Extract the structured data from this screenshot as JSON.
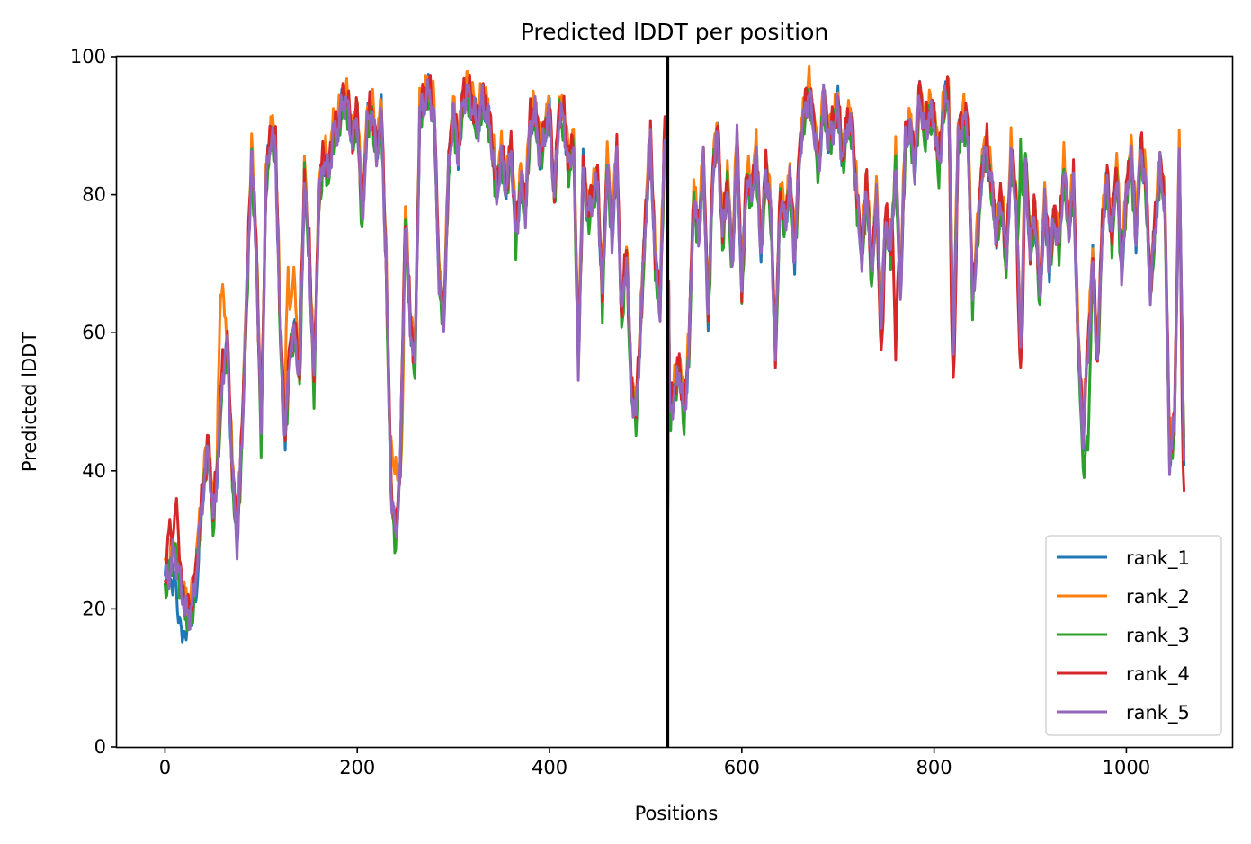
{
  "chart_data": {
    "type": "line",
    "title": "Predicted lDDT per position",
    "xlabel": "Positions",
    "ylabel": "Predicted lDDT",
    "xlim": [
      -50,
      1110
    ],
    "ylim": [
      0,
      100
    ],
    "xticks": [
      0,
      200,
      400,
      600,
      800,
      1000
    ],
    "yticks": [
      0,
      20,
      40,
      60,
      80,
      100
    ],
    "grid": false,
    "legend_position": "lower right",
    "vline": {
      "x": 523,
      "color": "#000000"
    },
    "series": [
      {
        "name": "rank_1",
        "color": "#1f77b4",
        "offset": 0.0,
        "overrides": [
          [
            3,
            27
          ],
          [
            8,
            22
          ],
          [
            14,
            18
          ],
          [
            18,
            15.2
          ],
          [
            22,
            15.5
          ],
          [
            28,
            17.5
          ],
          [
            32,
            21
          ]
        ]
      },
      {
        "name": "rank_2",
        "color": "#ff7f0e",
        "offset": 1.2,
        "overrides": [
          [
            58,
            64
          ],
          [
            60,
            67
          ],
          [
            128,
            69.5
          ],
          [
            134,
            69.5
          ],
          [
            235,
            45
          ],
          [
            240,
            42
          ],
          [
            245,
            40
          ]
        ]
      },
      {
        "name": "rank_3",
        "color": "#2ca02c",
        "offset": -0.9,
        "overrides": [
          [
            956,
            39
          ],
          [
            960,
            43
          ],
          [
            890,
            88
          ],
          [
            895,
            86
          ]
        ]
      },
      {
        "name": "rank_4",
        "color": "#d62728",
        "offset": 0.6,
        "overrides": [
          [
            5,
            33
          ],
          [
            12,
            36
          ],
          [
            745,
            57.5
          ],
          [
            760,
            56
          ],
          [
            820,
            53.5
          ],
          [
            890,
            55
          ],
          [
            1060,
            37
          ]
        ]
      },
      {
        "name": "rank_5",
        "color": "#9467bd",
        "offset": -0.4,
        "overrides": []
      }
    ],
    "x": [
      0,
      5,
      10,
      15,
      20,
      25,
      30,
      35,
      40,
      45,
      50,
      55,
      60,
      65,
      70,
      75,
      80,
      85,
      90,
      95,
      100,
      105,
      110,
      115,
      120,
      125,
      130,
      135,
      140,
      145,
      150,
      155,
      160,
      165,
      170,
      175,
      180,
      185,
      190,
      195,
      200,
      205,
      210,
      215,
      220,
      225,
      230,
      235,
      240,
      245,
      250,
      255,
      260,
      265,
      270,
      275,
      280,
      285,
      290,
      295,
      300,
      305,
      310,
      315,
      320,
      325,
      330,
      335,
      340,
      345,
      350,
      355,
      360,
      365,
      370,
      375,
      380,
      385,
      390,
      395,
      400,
      405,
      410,
      415,
      420,
      425,
      430,
      435,
      440,
      445,
      450,
      455,
      460,
      465,
      470,
      475,
      480,
      485,
      490,
      495,
      500,
      505,
      510,
      515,
      520,
      523,
      525,
      530,
      535,
      540,
      545,
      550,
      555,
      560,
      565,
      570,
      575,
      580,
      585,
      590,
      595,
      600,
      605,
      610,
      615,
      620,
      625,
      630,
      635,
      640,
      645,
      650,
      655,
      660,
      665,
      670,
      675,
      680,
      685,
      690,
      695,
      700,
      705,
      710,
      715,
      720,
      725,
      730,
      735,
      740,
      745,
      750,
      755,
      760,
      765,
      770,
      775,
      780,
      785,
      790,
      795,
      800,
      805,
      810,
      815,
      820,
      825,
      830,
      835,
      840,
      845,
      850,
      855,
      860,
      865,
      870,
      875,
      880,
      885,
      890,
      895,
      900,
      905,
      910,
      915,
      920,
      925,
      930,
      935,
      940,
      945,
      950,
      955,
      960,
      965,
      970,
      975,
      980,
      985,
      990,
      995,
      1000,
      1005,
      1010,
      1015,
      1020,
      1025,
      1030,
      1035,
      1040,
      1045,
      1050,
      1055,
      1060
    ],
    "base": [
      24,
      26,
      29,
      25,
      21,
      19,
      22,
      30,
      38,
      44,
      33,
      42,
      55,
      58,
      40,
      30,
      45,
      65,
      86,
      72,
      45,
      82,
      89,
      87,
      60,
      45,
      58,
      60,
      54,
      83,
      72,
      52,
      79,
      86,
      83,
      89,
      90,
      94,
      93,
      88,
      92,
      76,
      90,
      93,
      86,
      92,
      70,
      38,
      30,
      42,
      77,
      62,
      55,
      92,
      94,
      95,
      92,
      68,
      62,
      84,
      92,
      86,
      94,
      95,
      93,
      90,
      94,
      92,
      88,
      80,
      86,
      81,
      87,
      74,
      82,
      78,
      91,
      92,
      86,
      89,
      92,
      80,
      92,
      91,
      84,
      88,
      56,
      84,
      77,
      80,
      82,
      65,
      85,
      74,
      86,
      62,
      72,
      52,
      48,
      62,
      77,
      88,
      70,
      64,
      90,
      83,
      48,
      52,
      55,
      48,
      58,
      80,
      74,
      85,
      62,
      84,
      89,
      74,
      82,
      70,
      88,
      66,
      83,
      80,
      86,
      72,
      84,
      78,
      57,
      80,
      76,
      82,
      71,
      86,
      92,
      95,
      90,
      84,
      94,
      88,
      90,
      93,
      85,
      91,
      89,
      79,
      71,
      82,
      68,
      80,
      62,
      77,
      72,
      85,
      66,
      88,
      90,
      84,
      95,
      89,
      92,
      91,
      84,
      93,
      95,
      58,
      88,
      91,
      90,
      65,
      74,
      84,
      87,
      81,
      74,
      80,
      70,
      86,
      80,
      58,
      84,
      72,
      78,
      65,
      79,
      70,
      77,
      73,
      84,
      75,
      82,
      58,
      45,
      58,
      70,
      56,
      76,
      82,
      74,
      84,
      69,
      80,
      86,
      74,
      87,
      82,
      66,
      76,
      84,
      79,
      42,
      47,
      86,
      42
    ]
  },
  "legend": {
    "entries": [
      "rank_1",
      "rank_2",
      "rank_3",
      "rank_4",
      "rank_5"
    ]
  }
}
